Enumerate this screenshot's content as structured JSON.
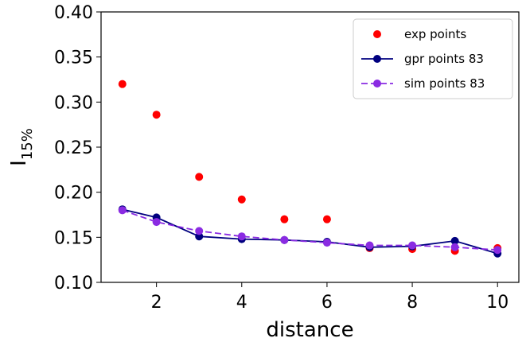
{
  "chart_data": {
    "type": "scatter",
    "xlabel": "distance",
    "ylabel": {
      "base": "I",
      "subscript": "15%"
    },
    "xlim": [
      0.7,
      10.5
    ],
    "ylim": [
      0.1,
      0.4
    ],
    "xticks": [
      2,
      4,
      6,
      8,
      10
    ],
    "yticks": [
      "0.10",
      "0.15",
      "0.20",
      "0.25",
      "0.30",
      "0.35",
      "0.40"
    ],
    "grid": false,
    "legend_position": "top-right",
    "series": [
      {
        "name": "exp points",
        "style": "markers",
        "color": "#ff0000",
        "x": [
          1.2,
          2,
          3,
          4,
          5,
          6,
          7,
          8,
          9,
          10
        ],
        "y": [
          0.32,
          0.286,
          0.217,
          0.192,
          0.17,
          0.17,
          0.138,
          0.137,
          0.135,
          0.138
        ]
      },
      {
        "name": "gpr points 83",
        "style": "line-markers",
        "color": "#00007f",
        "x": [
          1.2,
          2,
          3,
          4,
          5,
          6,
          7,
          8,
          9,
          10
        ],
        "y": [
          0.181,
          0.172,
          0.151,
          0.148,
          0.147,
          0.145,
          0.139,
          0.14,
          0.146,
          0.132
        ]
      },
      {
        "name": "sim points 83",
        "style": "dashed-markers",
        "color": "#8a2be2",
        "x": [
          1.2,
          2,
          3,
          4,
          5,
          6,
          7,
          8,
          9,
          10
        ],
        "y": [
          0.18,
          0.167,
          0.157,
          0.151,
          0.147,
          0.144,
          0.141,
          0.141,
          0.139,
          0.136
        ]
      }
    ]
  }
}
